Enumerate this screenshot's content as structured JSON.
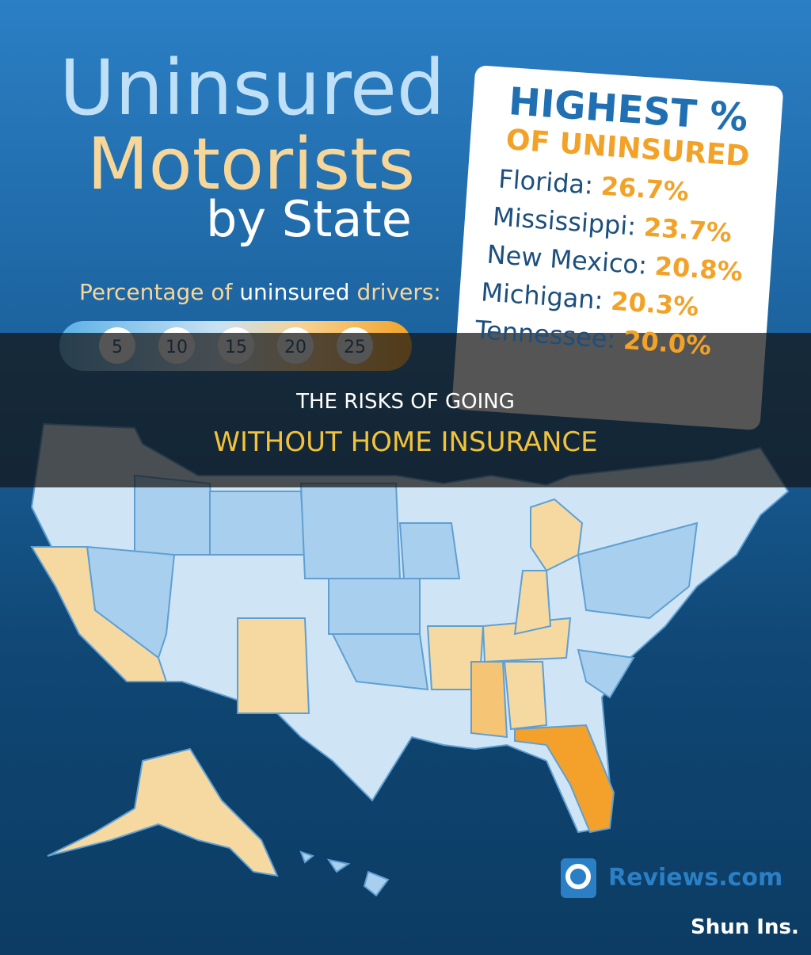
{
  "title": {
    "line1": "Uninsured",
    "line2": "Motorists",
    "line3": "by State"
  },
  "legend": {
    "parts": [
      "Percentage of",
      "uninsured",
      "drivers:"
    ],
    "scale": [
      "5",
      "10",
      "15",
      "20",
      "25"
    ]
  },
  "highest": {
    "heading1": "HIGHEST %",
    "heading2": "OF UNINSURED",
    "rows": [
      [
        "Florida:",
        "26.7%"
      ],
      [
        "Mississippi:",
        "23.7%"
      ],
      [
        "New Mexico:",
        "20.8%"
      ],
      [
        "Michigan:",
        "20.3%"
      ],
      [
        "Tennessee:",
        "20.0%"
      ]
    ]
  },
  "banner": {
    "line1": "THE RISKS OF GOING",
    "line2": "WITHOUT HOME INSURANCE"
  },
  "logo": "Reviews.com",
  "watermark": "Shun Ins."
}
